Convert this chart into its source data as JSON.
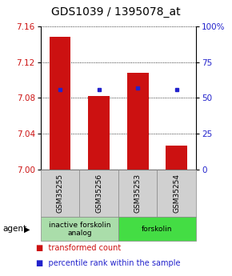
{
  "title": "GDS1039 / 1395078_at",
  "samples": [
    "GSM35255",
    "GSM35256",
    "GSM35253",
    "GSM35254"
  ],
  "bar_values": [
    7.148,
    7.082,
    7.108,
    7.027
  ],
  "percentile_values": [
    56,
    56,
    57,
    56
  ],
  "ylim": [
    7.0,
    7.16
  ],
  "y_ticks": [
    7.0,
    7.04,
    7.08,
    7.12,
    7.16
  ],
  "y2_ticks": [
    0,
    25,
    50,
    75,
    100
  ],
  "bar_color": "#cc1111",
  "dot_color": "#2222cc",
  "bar_width": 0.55,
  "groups": [
    {
      "label": "inactive forskolin\nanalog",
      "samples": [
        0,
        1
      ],
      "color": "#aaddaa"
    },
    {
      "label": "forskolin",
      "samples": [
        2,
        3
      ],
      "color": "#44dd44"
    }
  ],
  "agent_label": "agent",
  "legend_items": [
    {
      "color": "#cc1111",
      "label": "transformed count"
    },
    {
      "color": "#2222cc",
      "label": "percentile rank within the sample"
    }
  ],
  "title_fontsize": 10,
  "tick_fontsize": 7.5,
  "sample_fontsize": 6.5,
  "group_fontsize": 6.5,
  "legend_fontsize": 7
}
